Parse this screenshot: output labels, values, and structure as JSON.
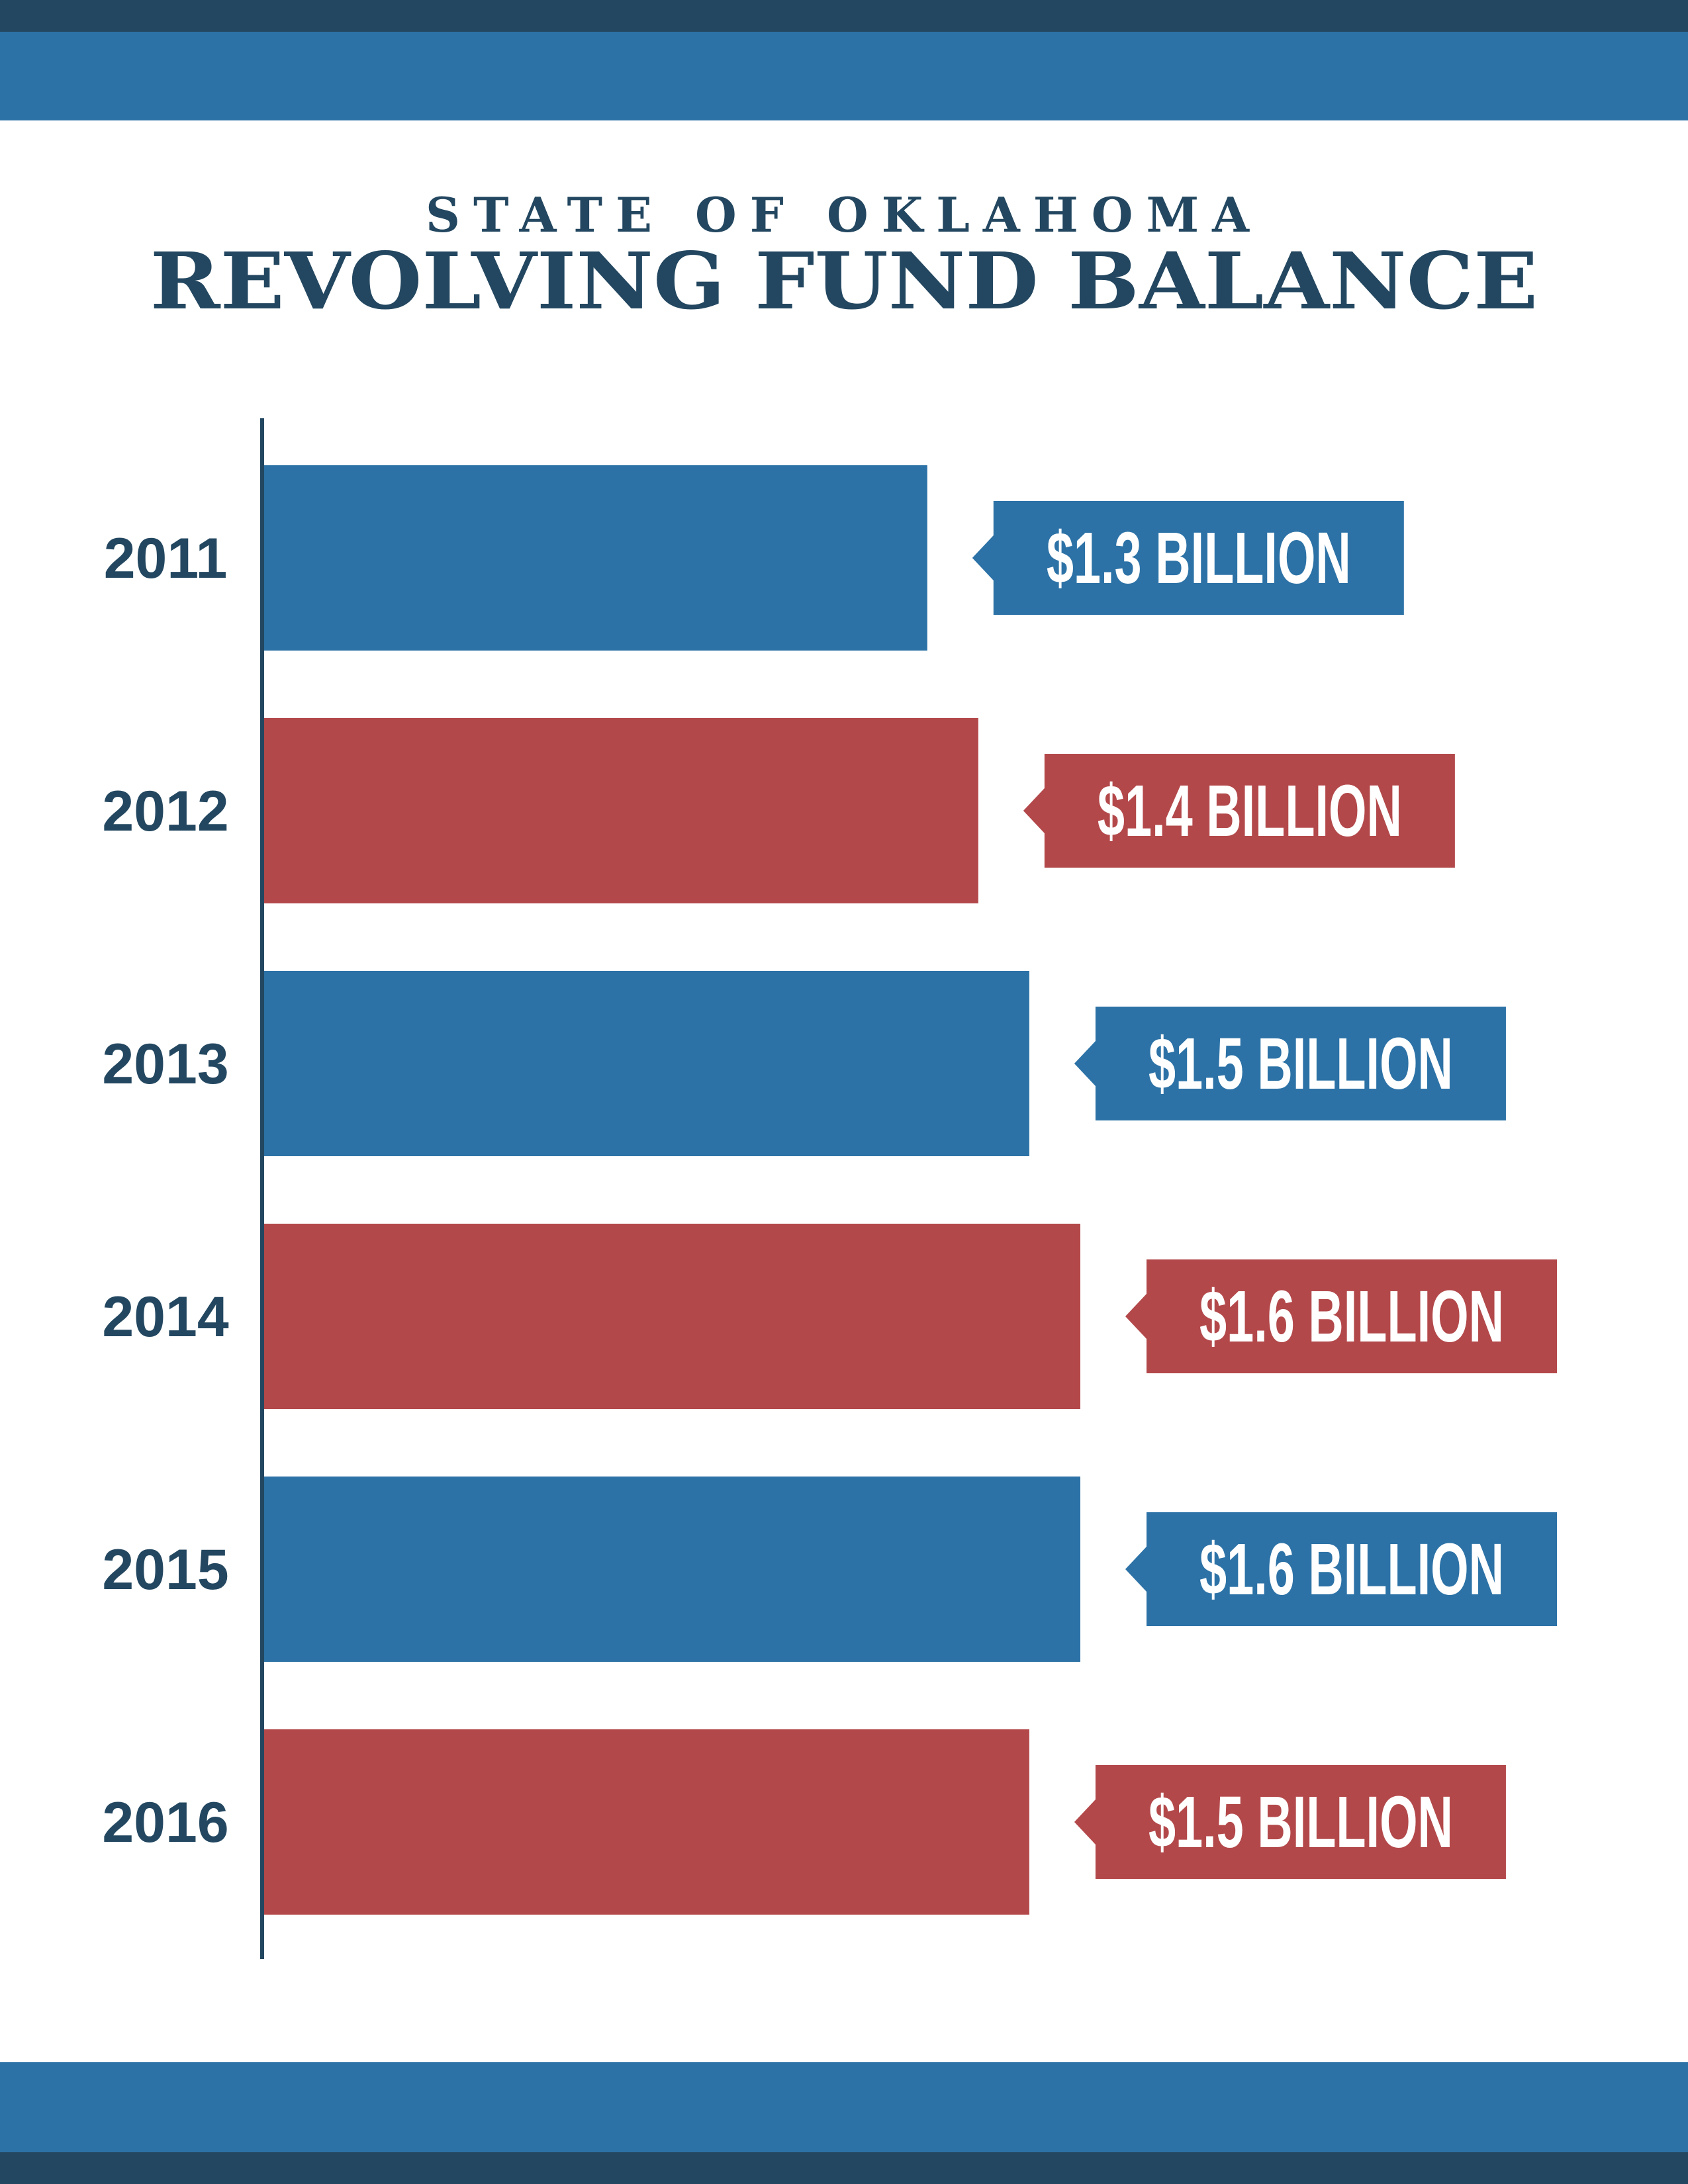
{
  "colors": {
    "dark_navy": "#234760",
    "blue": "#2c72a6",
    "red": "#b3484a",
    "white": "#ffffff"
  },
  "header": {
    "subtitle": "STATE OF OKLAHOMA",
    "title": "REVOLVING FUND BALANCE"
  },
  "chart_data": {
    "type": "bar",
    "orientation": "horizontal",
    "title": "REVOLVING FUND BALANCE",
    "subtitle": "STATE OF OKLAHOMA",
    "categories": [
      "2011",
      "2012",
      "2013",
      "2014",
      "2015",
      "2016"
    ],
    "values": [
      1.3,
      1.4,
      1.5,
      1.6,
      1.6,
      1.5
    ],
    "value_unit": "billion USD",
    "data_labels": [
      "$1.3 BILLION",
      "$1.4 BILLION",
      "$1.5 BILLION",
      "$1.6 BILLION",
      "$1.6 BILLION",
      "$1.5 BILLION"
    ],
    "bar_colors": [
      "#2c72a6",
      "#b3484a",
      "#2c72a6",
      "#b3484a",
      "#2c72a6",
      "#b3484a"
    ],
    "xlim": [
      0,
      1.6
    ],
    "grid": false,
    "legend": "none"
  }
}
